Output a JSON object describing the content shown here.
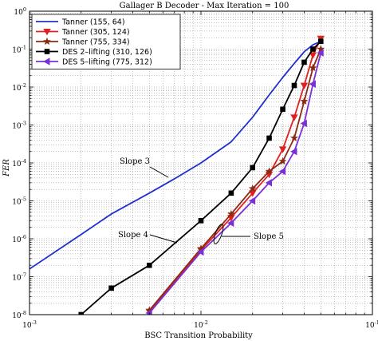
{
  "chart_data": {
    "type": "line",
    "title": "Gallager B Decoder - Max Iteration = 100",
    "xlabel": "BSC Transition Probability",
    "ylabel": "FER",
    "xscale": "log",
    "yscale": "log",
    "xlim": [
      0.001,
      0.1
    ],
    "ylim": [
      1e-08,
      1
    ],
    "grid": "on (major and minor, dotted)",
    "legend_position": "top-left",
    "x_ticks": [
      {
        "base": "10",
        "exp": "-3"
      },
      {
        "base": "10",
        "exp": "-2"
      },
      {
        "base": "10",
        "exp": "-1"
      }
    ],
    "y_ticks": [
      {
        "base": "10",
        "exp": "0"
      },
      {
        "base": "10",
        "exp": "-1"
      },
      {
        "base": "10",
        "exp": "-2"
      },
      {
        "base": "10",
        "exp": "-3"
      },
      {
        "base": "10",
        "exp": "-4"
      },
      {
        "base": "10",
        "exp": "-5"
      },
      {
        "base": "10",
        "exp": "-6"
      },
      {
        "base": "10",
        "exp": "-7"
      },
      {
        "base": "10",
        "exp": "-8"
      }
    ],
    "series": [
      {
        "name": "Tanner (155, 64)",
        "color": "#1f2fcf",
        "marker": "none",
        "x": [
          0.001,
          0.002,
          0.003,
          0.005,
          0.007,
          0.01,
          0.015,
          0.02,
          0.025,
          0.03,
          0.035,
          0.04,
          0.045,
          0.05
        ],
        "y": [
          1.6e-07,
          1.3e-06,
          4.5e-06,
          1.6e-05,
          3.8e-05,
          0.0001,
          0.00036,
          0.0016,
          0.0062,
          0.018,
          0.042,
          0.085,
          0.13,
          0.16
        ]
      },
      {
        "name": "Tanner (305, 124)",
        "color": "#e02020",
        "marker": "triangle-down",
        "x": [
          0.005,
          0.01,
          0.015,
          0.02,
          0.025,
          0.03,
          0.035,
          0.04,
          0.045,
          0.05
        ],
        "y": [
          1.2e-08,
          5e-07,
          3.6e-06,
          1.6e-05,
          5e-05,
          0.00023,
          0.0016,
          0.011,
          0.07,
          0.19
        ]
      },
      {
        "name": "Tanner (755, 334)",
        "color": "#8b2a12",
        "marker": "star",
        "x": [
          0.005,
          0.01,
          0.015,
          0.02,
          0.025,
          0.03,
          0.035,
          0.04,
          0.045,
          0.05
        ],
        "y": [
          1.3e-08,
          5.5e-07,
          4.5e-06,
          2.1e-05,
          6e-05,
          0.00011,
          0.00045,
          0.0042,
          0.032,
          0.1
        ]
      },
      {
        "name": "DES 2–lifting (310, 126)",
        "color": "#000000",
        "marker": "square",
        "x": [
          0.002,
          0.003,
          0.005,
          0.01,
          0.015,
          0.02,
          0.025,
          0.03,
          0.035,
          0.04,
          0.045,
          0.05
        ],
        "y": [
          1e-08,
          5e-08,
          2e-07,
          3e-06,
          1.6e-05,
          7.5e-05,
          0.00045,
          0.0026,
          0.011,
          0.045,
          0.1,
          0.16
        ]
      },
      {
        "name": "DES 5–lifting (775, 312)",
        "color": "#7b2fd8",
        "marker": "triangle-left",
        "x": [
          0.005,
          0.01,
          0.015,
          0.02,
          0.025,
          0.03,
          0.035,
          0.04,
          0.045,
          0.05
        ],
        "y": [
          1.1e-08,
          4.5e-07,
          2.6e-06,
          1e-05,
          3e-05,
          6e-05,
          0.0002,
          0.0011,
          0.012,
          0.08
        ]
      }
    ],
    "annotations": [
      "Slope 3",
      "Slope 4",
      "Slope 5"
    ]
  }
}
